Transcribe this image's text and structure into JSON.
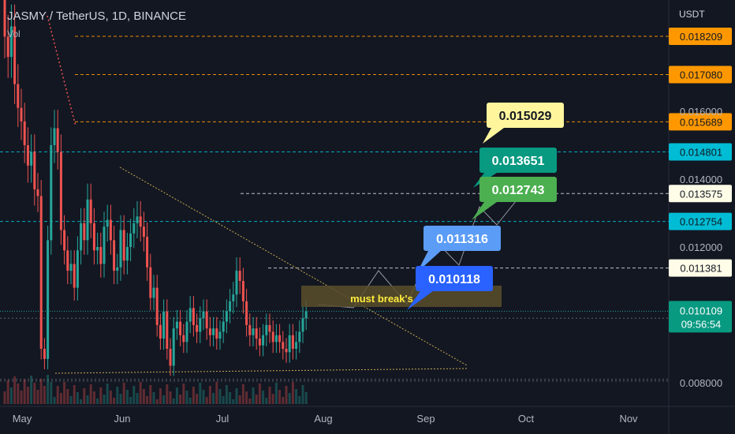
{
  "header": {
    "symbol_title": "JASMY / TetherUS, 1D, BINANCE",
    "volume_label": "Vol",
    "currency_unit": "USDT"
  },
  "chart_data": {
    "type": "candlestick",
    "title": "JASMY / TetherUS, 1D, BINANCE",
    "y_axis": {
      "ticks": [
        0.008,
        0.01,
        0.012,
        0.014,
        0.016
      ],
      "tick_labels": [
        "0.008000",
        "0.010000",
        "0.012000",
        "0.014000",
        "0.016000"
      ],
      "range": [
        0.0075,
        0.0196
      ],
      "unit": "USDT"
    },
    "x_axis": {
      "labels": [
        "May",
        "Jun",
        "Jul",
        "Aug",
        "Sep",
        "Oct",
        "Nov"
      ]
    },
    "current_price": "0.010109",
    "countdown": "09:56:54",
    "levels": [
      {
        "value": 0.018209,
        "label": "0.018209",
        "style": "dashed",
        "color": "#ff9800"
      },
      {
        "value": 0.01708,
        "label": "0.017080",
        "style": "dashed",
        "color": "#ff9800"
      },
      {
        "value": 0.015689,
        "label": "0.015689",
        "style": "dashed",
        "color": "#ff9800"
      },
      {
        "value": 0.014801,
        "label": "0.014801",
        "style": "dashed",
        "color": "#00bcd4"
      },
      {
        "value": 0.013575,
        "label": "0.013575",
        "style": "dashed",
        "color": "#d1d4dc"
      },
      {
        "value": 0.012754,
        "label": "0.012754",
        "style": "dashed",
        "color": "#00bcd4"
      },
      {
        "value": 0.011381,
        "label": "0.011381",
        "style": "dashed",
        "color": "#d1d4dc"
      }
    ],
    "callouts": [
      {
        "label": "0.015029",
        "color": "#fff59d",
        "text_color": "#131722"
      },
      {
        "label": "0.013651",
        "color": "#089981",
        "text_color": "#ffffff"
      },
      {
        "label": "0.012743",
        "color": "#4caf50",
        "text_color": "#ffffff"
      },
      {
        "label": "0.011316",
        "color": "#5b9cf6",
        "text_color": "#ffffff"
      },
      {
        "label": "0.010118",
        "color": "#2962ff",
        "text_color": "#ffffff"
      }
    ],
    "annotation": "must break's",
    "closes": [
      0.0182,
      0.0176,
      0.0185,
      0.0168,
      0.0161,
      0.0157,
      0.015,
      0.0144,
      0.0148,
      0.0137,
      0.0135,
      0.009,
      0.0087,
      0.0122,
      0.015,
      0.0155,
      0.0148,
      0.0125,
      0.0119,
      0.0113,
      0.0115,
      0.0108,
      0.0119,
      0.0127,
      0.0122,
      0.0134,
      0.0127,
      0.0119,
      0.012,
      0.0115,
      0.0126,
      0.0128,
      0.0122,
      0.0113,
      0.0114,
      0.0125,
      0.0116,
      0.012,
      0.0124,
      0.0127,
      0.0129,
      0.0126,
      0.0123,
      0.0114,
      0.0105,
      0.0108,
      0.0097,
      0.0093,
      0.0101,
      0.009,
      0.0085,
      0.0096,
      0.0098,
      0.0094,
      0.0092,
      0.0098,
      0.0102,
      0.0097,
      0.0095,
      0.0099,
      0.0101,
      0.0096,
      0.0094,
      0.0096,
      0.0093,
      0.0095,
      0.0098,
      0.0101,
      0.0104,
      0.0106,
      0.0113,
      0.011,
      0.0104,
      0.0097,
      0.0094,
      0.0096,
      0.0093,
      0.0091,
      0.0094,
      0.0097,
      0.0095,
      0.0092,
      0.0094,
      0.0092,
      0.009,
      0.0089,
      0.0094,
      0.009,
      0.0092,
      0.0095,
      0.0099,
      0.0101
    ]
  }
}
